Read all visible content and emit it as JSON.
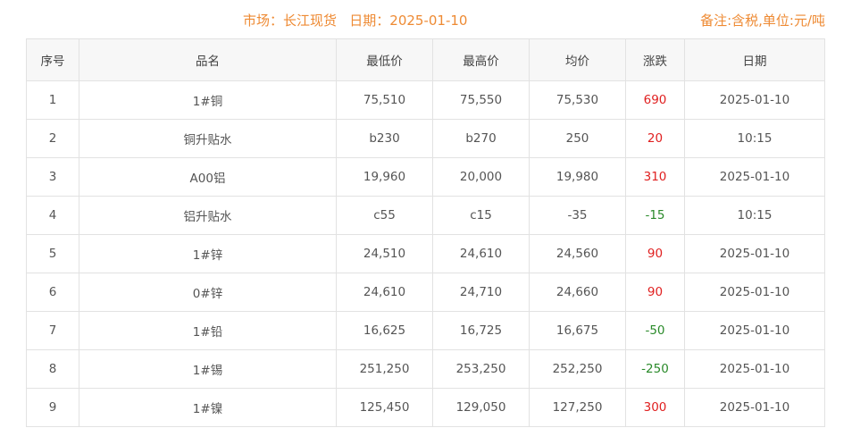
{
  "header": {
    "title": "市场：长江现货   日期：2025-01-10",
    "note": "备注:含税,单位:元/吨"
  },
  "colors": {
    "accent": "#ee8a33",
    "up": "#e02020",
    "down": "#2a8a2a"
  },
  "table": {
    "columns": [
      "序号",
      "品名",
      "最低价",
      "最高价",
      "均价",
      "涨跌",
      "日期"
    ],
    "rows": [
      {
        "no": "1",
        "name": "1#铜",
        "low": "75,510",
        "high": "75,550",
        "avg": "75,530",
        "change": "690",
        "dir": "up",
        "date": "2025-01-10"
      },
      {
        "no": "2",
        "name": "铜升贴水",
        "low": "b230",
        "high": "b270",
        "avg": "250",
        "change": "20",
        "dir": "up",
        "date": "10:15"
      },
      {
        "no": "3",
        "name": "A00铝",
        "low": "19,960",
        "high": "20,000",
        "avg": "19,980",
        "change": "310",
        "dir": "up",
        "date": "2025-01-10"
      },
      {
        "no": "4",
        "name": "铝升贴水",
        "low": "c55",
        "high": "c15",
        "avg": "-35",
        "change": "-15",
        "dir": "down",
        "date": "10:15"
      },
      {
        "no": "5",
        "name": "1#锌",
        "low": "24,510",
        "high": "24,610",
        "avg": "24,560",
        "change": "90",
        "dir": "up",
        "date": "2025-01-10"
      },
      {
        "no": "6",
        "name": "0#锌",
        "low": "24,610",
        "high": "24,710",
        "avg": "24,660",
        "change": "90",
        "dir": "up",
        "date": "2025-01-10"
      },
      {
        "no": "7",
        "name": "1#铅",
        "low": "16,625",
        "high": "16,725",
        "avg": "16,675",
        "change": "-50",
        "dir": "down",
        "date": "2025-01-10"
      },
      {
        "no": "8",
        "name": "1#锡",
        "low": "251,250",
        "high": "253,250",
        "avg": "252,250",
        "change": "-250",
        "dir": "down",
        "date": "2025-01-10"
      },
      {
        "no": "9",
        "name": "1#镍",
        "low": "125,450",
        "high": "129,050",
        "avg": "127,250",
        "change": "300",
        "dir": "up",
        "date": "2025-01-10"
      }
    ]
  }
}
